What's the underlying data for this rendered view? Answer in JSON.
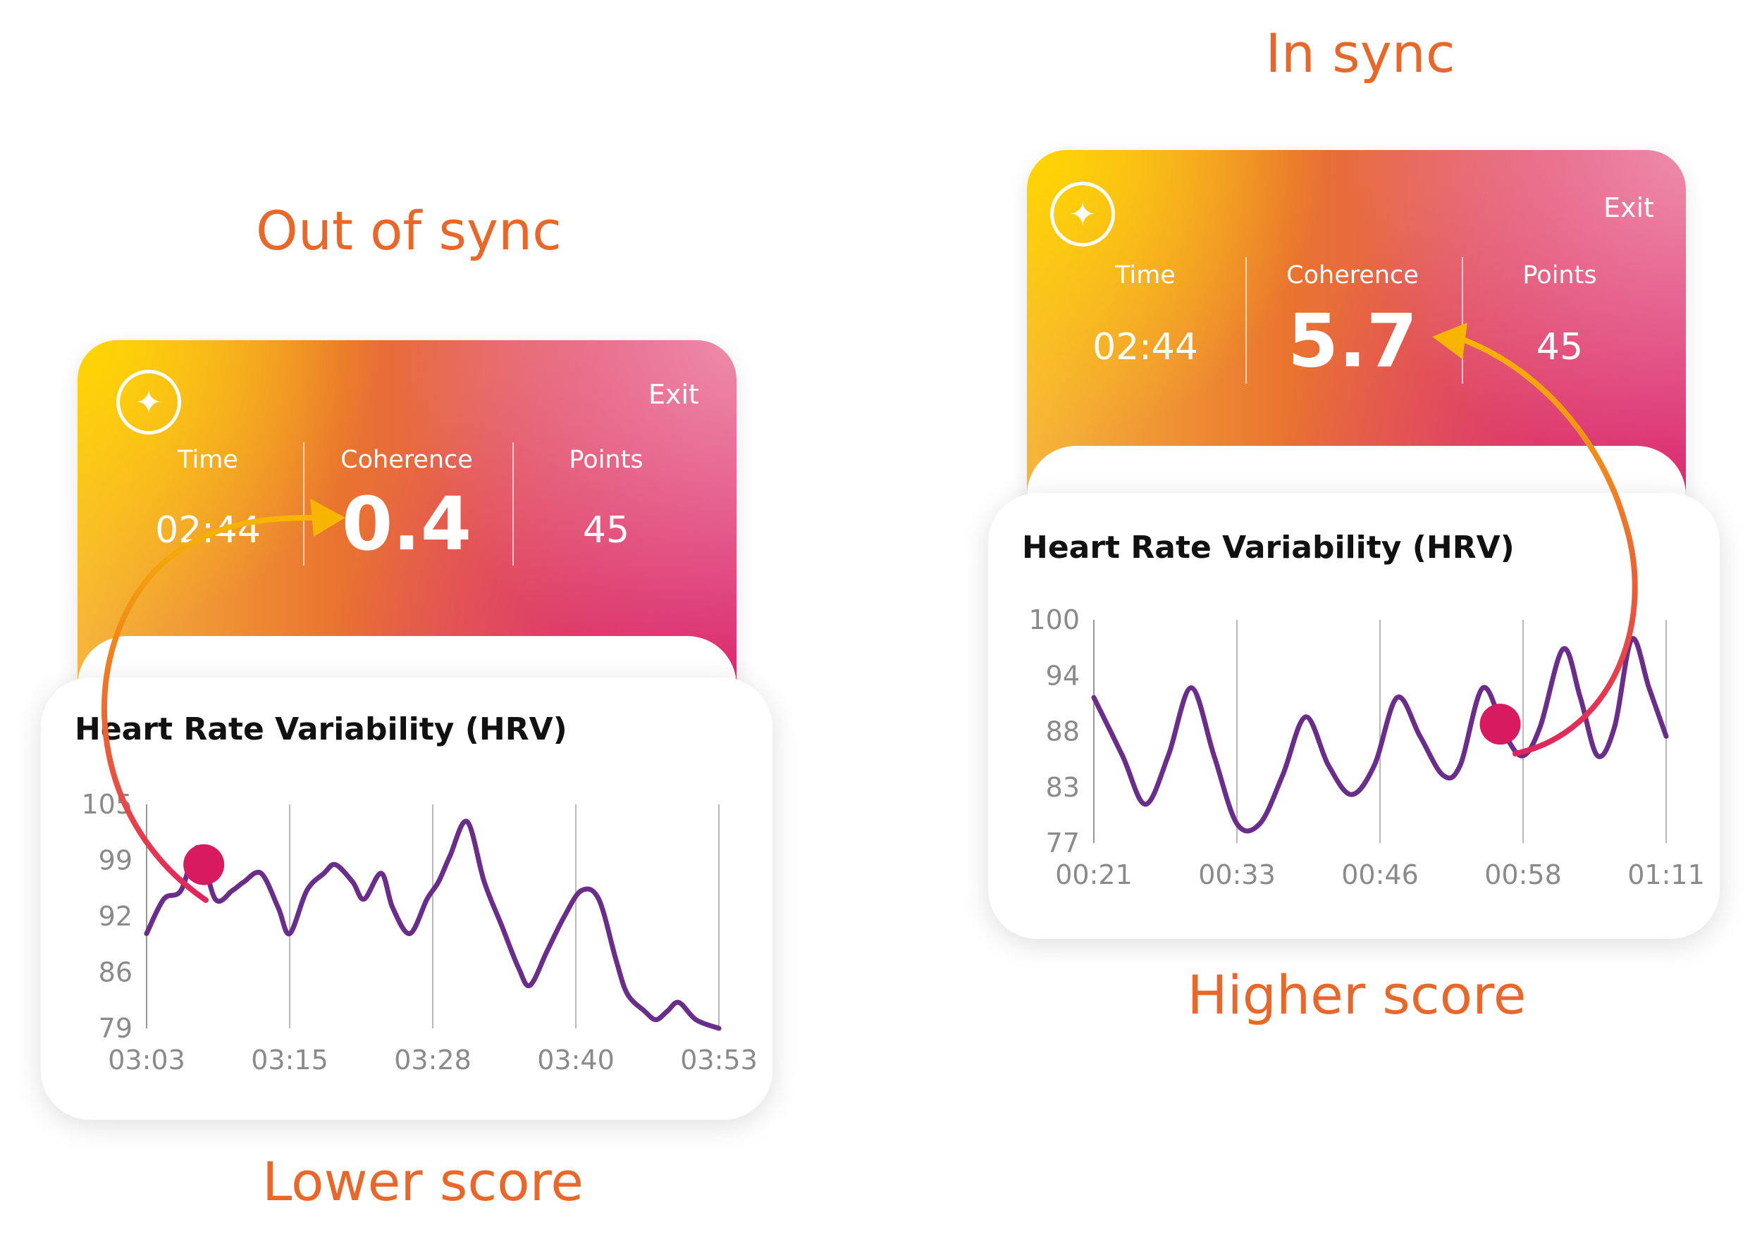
{
  "captions": {
    "left_top": "Out of sync",
    "right_top": "In sync",
    "left_bottom": "Lower score",
    "right_bottom": "Higher score"
  },
  "colors": {
    "caption": "#e8672a",
    "line": "#6b2d8a",
    "dot": "#d81b60",
    "arrow_start": "#f7b500",
    "arrow_end": "#e0245e"
  },
  "left_panel": {
    "icon": "sparkle-icon",
    "exit_label": "Exit",
    "time_label": "Time",
    "time_value": "02:44",
    "coherence_label": "Coherence",
    "coherence_value": "0.4",
    "points_label": "Points",
    "points_value": "45",
    "hrv_title": "Heart Rate Variability (HRV)"
  },
  "right_panel": {
    "icon": "sparkle-icon",
    "exit_label": "Exit",
    "time_label": "Time",
    "time_value": "02:44",
    "coherence_label": "Coherence",
    "coherence_value": "5.7",
    "points_label": "Points",
    "points_value": "45",
    "hrv_title": "Heart Rate Variability (HRV)"
  },
  "chart_data": [
    {
      "type": "line",
      "title": "Heart Rate Variability (HRV)",
      "x_ticks": [
        "03:03",
        "03:15",
        "03:28",
        "03:40",
        "03:53"
      ],
      "y_ticks": [
        105,
        99,
        92,
        86,
        79
      ],
      "ylim": [
        79,
        105
      ],
      "xlim": [
        0,
        1
      ],
      "series": [
        {
          "x": [
            0.0,
            0.03,
            0.06,
            0.09,
            0.12,
            0.15,
            0.17,
            0.2,
            0.23,
            0.25,
            0.28,
            0.31,
            0.33,
            0.36,
            0.38,
            0.41,
            0.43,
            0.46,
            0.49,
            0.51,
            0.53,
            0.56,
            0.59,
            0.62,
            0.65,
            0.67,
            0.7,
            0.73,
            0.76,
            0.79,
            0.82,
            0.84,
            0.87,
            0.89,
            0.91,
            0.93,
            0.96,
            1.0
          ],
          "y": [
            90,
            94,
            95,
            100,
            94,
            95,
            96,
            97,
            93,
            90,
            95,
            97,
            98,
            96,
            94,
            97,
            93,
            90,
            94,
            96,
            99,
            103,
            96,
            91,
            86,
            84,
            88,
            92,
            95,
            94,
            87,
            83,
            81,
            80,
            81,
            82,
            80,
            79
          ]
        }
      ],
      "marker_x": 0.1,
      "grid": true
    },
    {
      "type": "line",
      "title": "Heart Rate Variability (HRV)",
      "x_ticks": [
        "00:21",
        "00:33",
        "00:46",
        "00:58",
        "01:11"
      ],
      "y_ticks": [
        100,
        94,
        88,
        83,
        77
      ],
      "ylim": [
        77,
        100
      ],
      "xlim": [
        0,
        1
      ],
      "series": [
        {
          "x": [
            0.0,
            0.05,
            0.09,
            0.13,
            0.17,
            0.21,
            0.25,
            0.29,
            0.33,
            0.37,
            0.41,
            0.45,
            0.49,
            0.53,
            0.57,
            0.61,
            0.64,
            0.68,
            0.72,
            0.75,
            0.78,
            0.82,
            0.85,
            0.88,
            0.91,
            0.94,
            0.97,
            1.0
          ],
          "y": [
            92,
            86,
            81,
            86,
            93,
            86,
            79,
            79,
            84,
            90,
            85,
            82,
            85,
            92,
            88,
            84,
            85,
            93,
            88,
            86,
            89,
            97,
            92,
            86,
            89,
            98,
            93,
            88
          ]
        }
      ],
      "marker_x": 0.71,
      "grid": true
    }
  ]
}
